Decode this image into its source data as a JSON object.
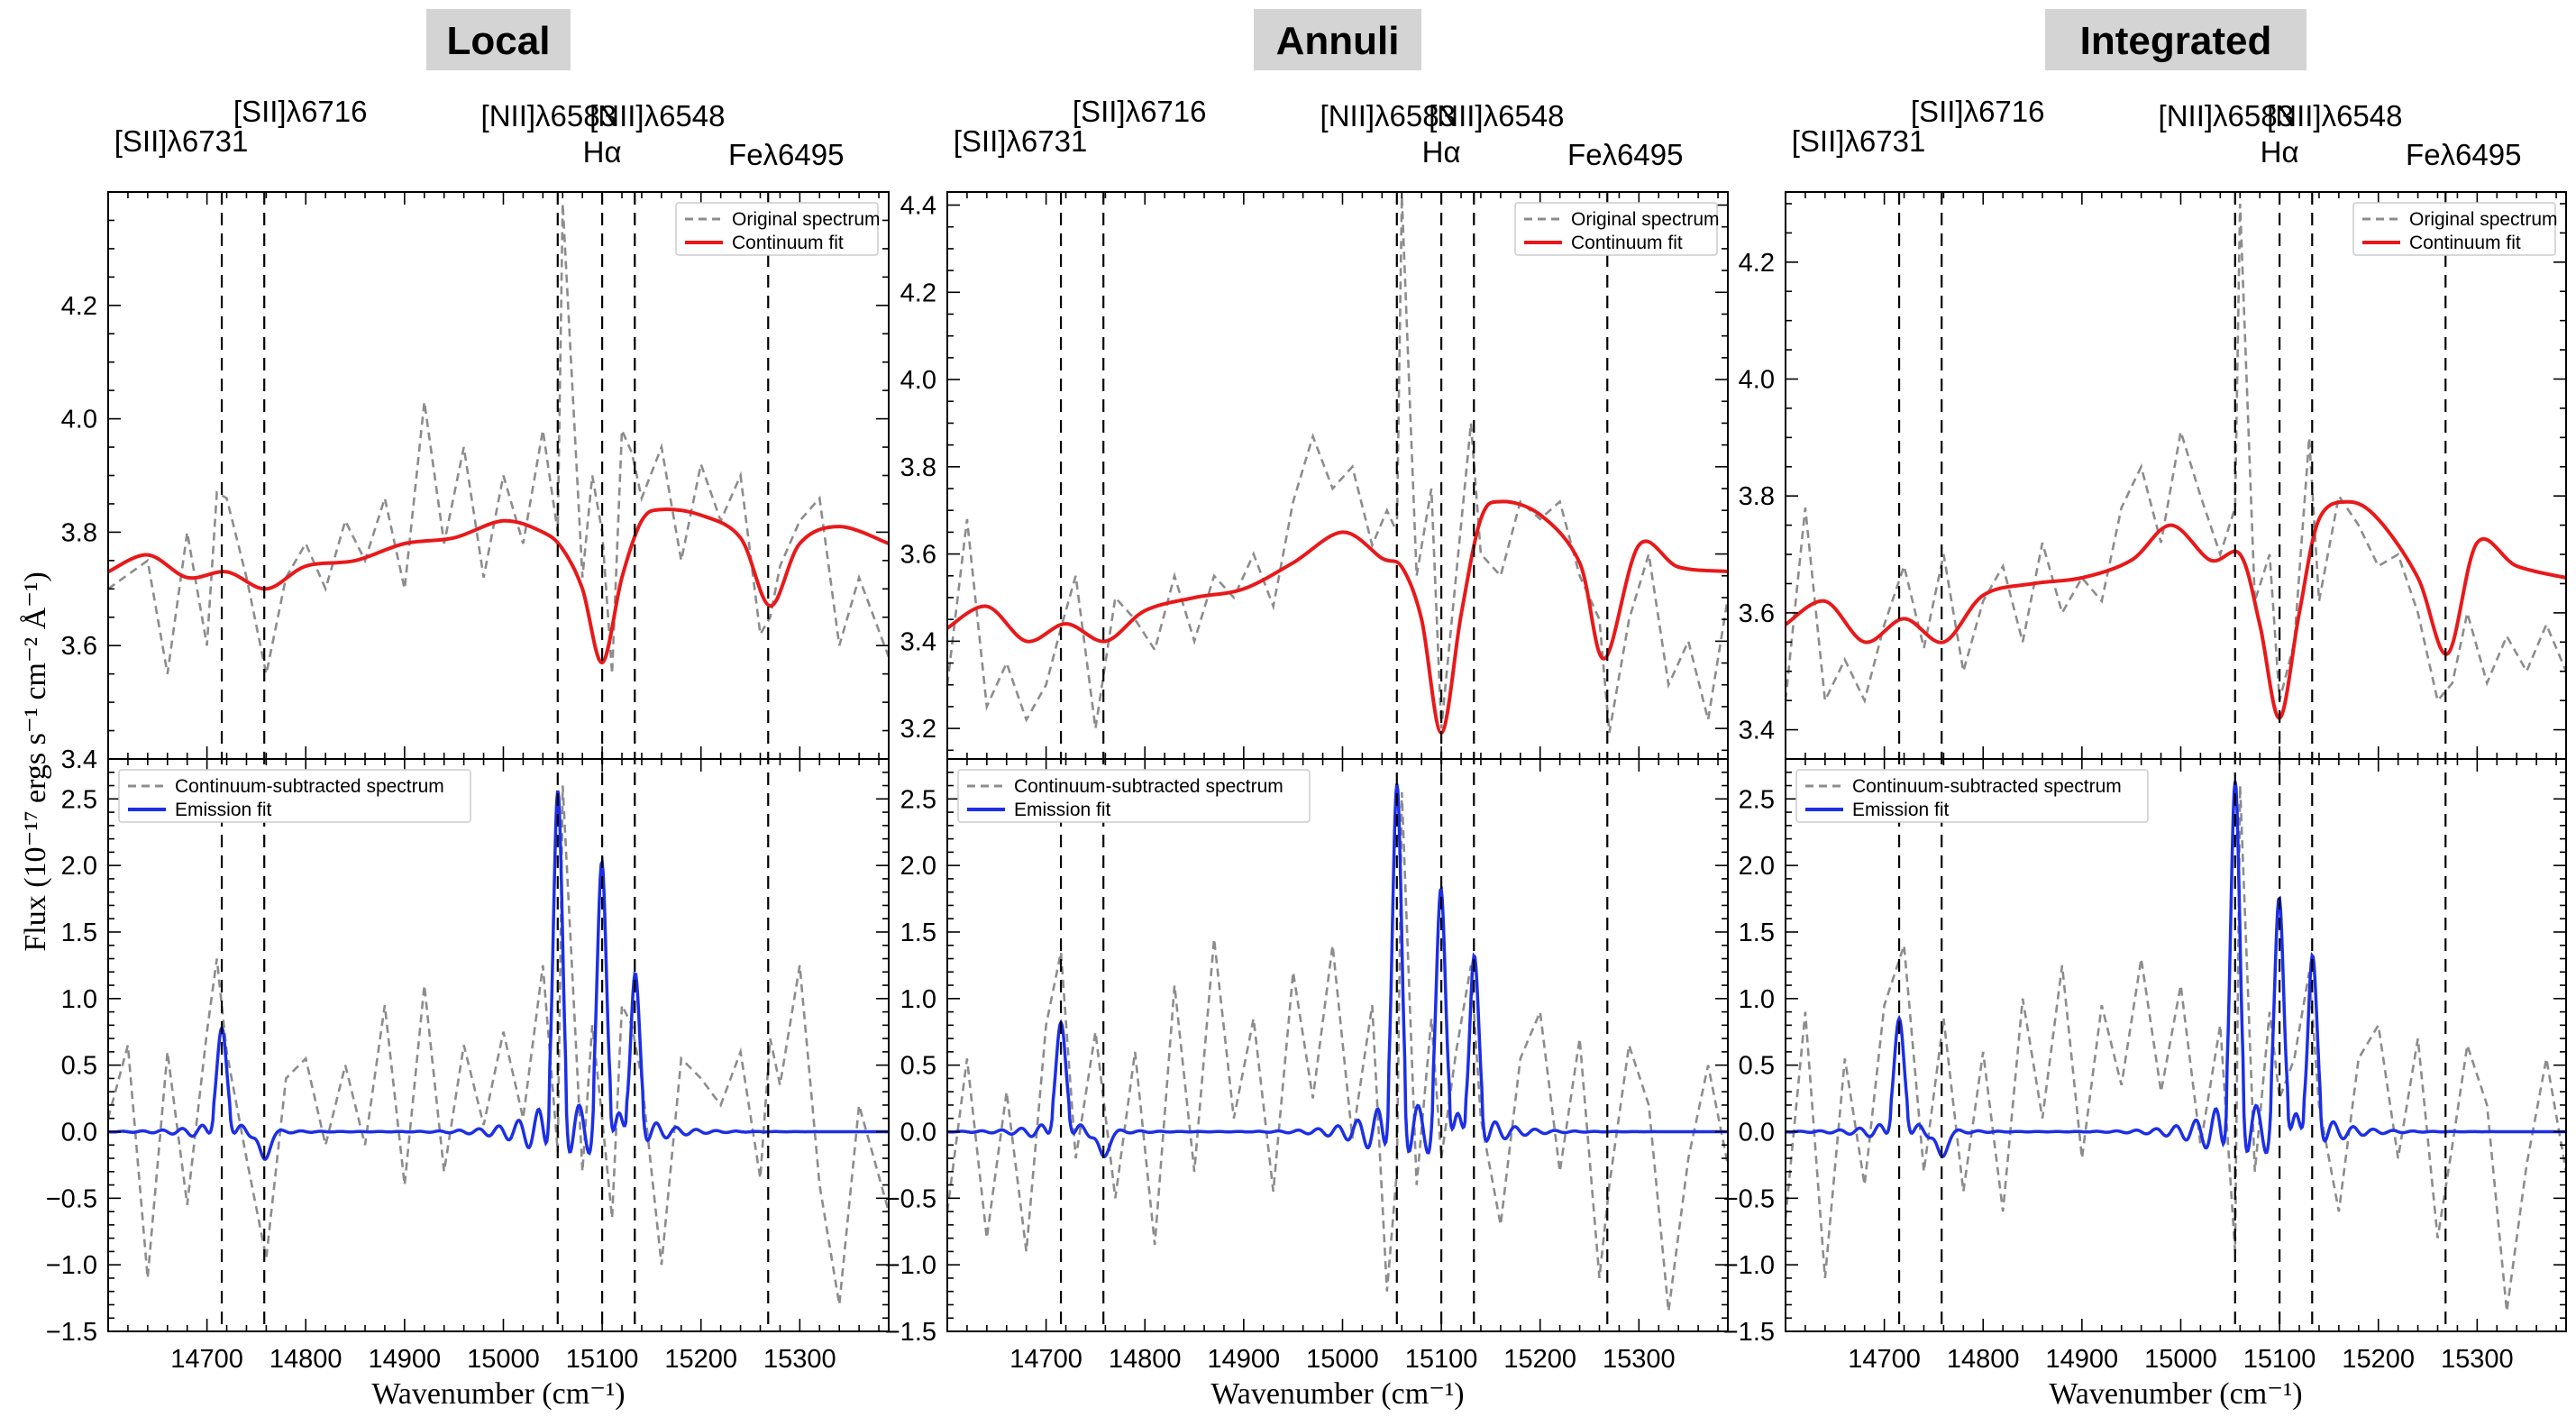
{
  "figure": {
    "ylabel": "Flux (10⁻¹⁷ ergs s⁻¹ cm⁻² Å⁻¹)",
    "xlabel": "Wavenumber (cm⁻¹)",
    "colors": {
      "original": "#8c8c8c",
      "continuum": "#e8191a",
      "residual": "#8c8c8c",
      "emission": "#1c2fe6",
      "title_bg": "#d4d4d4"
    }
  },
  "lines": [
    {
      "label": "[SII]λ6731",
      "nu": 14715
    },
    {
      "label": "[SII]λ6716",
      "nu": 14758
    },
    {
      "label": "[NII]λ6583",
      "nu": 15055
    },
    {
      "label": "Hα",
      "nu": 15100
    },
    {
      "label": "[NII]λ6548",
      "nu": 15133
    },
    {
      "label": "Feλ6495",
      "nu": 15268
    }
  ],
  "chart_data": [
    {
      "type": "line",
      "panel": "Local",
      "title": "Local",
      "xlim": [
        14600,
        15390
      ],
      "xticks": [
        14700,
        14800,
        14900,
        15000,
        15100,
        15200,
        15300
      ],
      "top": {
        "ylim": [
          3.4,
          4.4
        ],
        "yticks": [
          3.4,
          3.6,
          3.8,
          4.0,
          4.2
        ],
        "legend": [
          "Original spectrum",
          "Continuum fit"
        ],
        "continuum": {
          "x": [
            14600,
            14640,
            14680,
            14720,
            14760,
            14800,
            14850,
            14900,
            14950,
            15000,
            15040,
            15060,
            15080,
            15100,
            15120,
            15140,
            15160,
            15200,
            15240,
            15270,
            15300,
            15340,
            15390
          ],
          "y": [
            3.73,
            3.76,
            3.72,
            3.73,
            3.7,
            3.74,
            3.75,
            3.78,
            3.79,
            3.82,
            3.8,
            3.77,
            3.7,
            3.57,
            3.72,
            3.82,
            3.84,
            3.83,
            3.79,
            3.67,
            3.78,
            3.81,
            3.78
          ]
        },
        "original": {
          "x": [
            14600,
            14640,
            14660,
            14680,
            14700,
            14710,
            14720,
            14740,
            14760,
            14780,
            14800,
            14820,
            14840,
            14860,
            14880,
            14900,
            14920,
            14940,
            14960,
            14980,
            15000,
            15020,
            15040,
            15055,
            15060,
            15080,
            15090,
            15100,
            15110,
            15120,
            15130,
            15140,
            15160,
            15180,
            15200,
            15220,
            15240,
            15260,
            15270,
            15280,
            15300,
            15320,
            15340,
            15360,
            15390
          ],
          "y": [
            3.7,
            3.75,
            3.55,
            3.8,
            3.6,
            3.87,
            3.86,
            3.72,
            3.55,
            3.72,
            3.78,
            3.7,
            3.82,
            3.75,
            3.86,
            3.7,
            4.03,
            3.78,
            3.95,
            3.72,
            3.9,
            3.78,
            3.98,
            3.8,
            4.38,
            3.72,
            3.9,
            3.8,
            3.55,
            3.98,
            3.94,
            3.86,
            3.95,
            3.75,
            3.92,
            3.82,
            3.9,
            3.62,
            3.65,
            3.74,
            3.82,
            3.86,
            3.6,
            3.72,
            3.58
          ]
        }
      },
      "bottom": {
        "ylim": [
          -1.5,
          2.8
        ],
        "yticks": [
          -1.5,
          -1.0,
          -0.5,
          0.0,
          0.5,
          1.0,
          1.5,
          2.0,
          2.5
        ],
        "legend": [
          "Continuum-subtracted spectrum",
          "Emission fit"
        ],
        "peaks": [
          0.78,
          -0.22,
          2.55,
          2.05,
          1.22
        ],
        "residual": {
          "x": [
            14600,
            14620,
            14640,
            14660,
            14680,
            14700,
            14710,
            14720,
            14740,
            14760,
            14780,
            14800,
            14820,
            14840,
            14860,
            14880,
            14900,
            14920,
            14940,
            14960,
            14980,
            15000,
            15020,
            15040,
            15055,
            15060,
            15080,
            15090,
            15100,
            15110,
            15120,
            15130,
            15140,
            15160,
            15180,
            15200,
            15220,
            15240,
            15260,
            15270,
            15280,
            15300,
            15320,
            15340,
            15360,
            15390
          ],
          "y": [
            0.1,
            0.65,
            -1.1,
            0.6,
            -0.55,
            0.75,
            1.3,
            0.6,
            -0.2,
            -0.95,
            0.4,
            0.55,
            -0.1,
            0.5,
            -0.1,
            0.95,
            -0.4,
            1.1,
            -0.3,
            0.65,
            0.05,
            0.75,
            0.1,
            1.25,
            -0.15,
            2.6,
            -0.3,
            0.8,
            0.1,
            -0.65,
            0.95,
            0.8,
            0.4,
            -1.0,
            0.55,
            0.4,
            0.2,
            0.6,
            -0.35,
            0.7,
            0.35,
            1.25,
            -0.4,
            -1.3,
            0.2,
            -0.6
          ]
        }
      }
    },
    {
      "type": "line",
      "panel": "Annuli",
      "title": "Annuli",
      "xlim": [
        14600,
        15390
      ],
      "xticks": [
        14700,
        14800,
        14900,
        15000,
        15100,
        15200,
        15300
      ],
      "top": {
        "ylim": [
          3.13,
          4.43
        ],
        "yticks": [
          3.2,
          3.4,
          3.6,
          3.8,
          4.0,
          4.2,
          4.4
        ],
        "legend": [
          "Original spectrum",
          "Continuum fit"
        ],
        "continuum": {
          "x": [
            14600,
            14640,
            14680,
            14720,
            14760,
            14800,
            14850,
            14900,
            14950,
            15000,
            15040,
            15060,
            15080,
            15100,
            15120,
            15140,
            15160,
            15200,
            15240,
            15265,
            15300,
            15340,
            15390
          ],
          "y": [
            3.43,
            3.48,
            3.4,
            3.44,
            3.4,
            3.47,
            3.5,
            3.52,
            3.58,
            3.65,
            3.59,
            3.57,
            3.45,
            3.19,
            3.46,
            3.68,
            3.72,
            3.69,
            3.58,
            3.36,
            3.62,
            3.57,
            3.56
          ]
        },
        "original": {
          "x": [
            14600,
            14620,
            14640,
            14660,
            14680,
            14700,
            14715,
            14730,
            14750,
            14770,
            14790,
            14810,
            14830,
            14850,
            14870,
            14890,
            14910,
            14930,
            14950,
            14970,
            14990,
            15010,
            15030,
            15045,
            15055,
            15060,
            15075,
            15090,
            15100,
            15115,
            15130,
            15140,
            15160,
            15180,
            15200,
            15220,
            15240,
            15260,
            15270,
            15290,
            15310,
            15330,
            15350,
            15370,
            15390
          ],
          "y": [
            3.3,
            3.68,
            3.25,
            3.35,
            3.22,
            3.3,
            3.43,
            3.55,
            3.2,
            3.5,
            3.45,
            3.38,
            3.55,
            3.4,
            3.55,
            3.5,
            3.6,
            3.48,
            3.72,
            3.87,
            3.75,
            3.8,
            3.62,
            3.7,
            3.65,
            4.42,
            3.55,
            3.75,
            3.2,
            3.55,
            3.9,
            3.6,
            3.55,
            3.72,
            3.68,
            3.72,
            3.55,
            3.45,
            3.19,
            3.45,
            3.6,
            3.3,
            3.4,
            3.22,
            3.5
          ]
        }
      },
      "bottom": {
        "ylim": [
          -1.5,
          2.8
        ],
        "yticks": [
          -1.5,
          -1.0,
          -0.5,
          0.0,
          0.5,
          1.0,
          1.5,
          2.0,
          2.5
        ],
        "legend": [
          "Continuum-subtracted spectrum",
          "Emission fit"
        ],
        "peaks": [
          0.82,
          -0.2,
          2.6,
          1.85,
          1.35
        ],
        "residual": {
          "x": [
            14600,
            14620,
            14640,
            14660,
            14680,
            14700,
            14715,
            14730,
            14750,
            14770,
            14790,
            14810,
            14830,
            14850,
            14870,
            14890,
            14910,
            14930,
            14950,
            14970,
            14990,
            15010,
            15030,
            15045,
            15055,
            15060,
            15075,
            15090,
            15100,
            15115,
            15130,
            15140,
            15160,
            15180,
            15200,
            15220,
            15240,
            15260,
            15270,
            15290,
            15310,
            15330,
            15350,
            15370,
            15390
          ],
          "y": [
            -0.6,
            0.55,
            -0.8,
            0.3,
            -0.9,
            0.8,
            1.35,
            -0.2,
            0.75,
            -0.5,
            0.6,
            -0.85,
            1.1,
            -0.3,
            1.45,
            0.1,
            0.85,
            -0.45,
            1.2,
            0.25,
            1.4,
            -0.05,
            0.95,
            -1.2,
            -0.3,
            2.55,
            -0.4,
            0.85,
            -0.2,
            0.6,
            1.25,
            0.1,
            -0.7,
            0.55,
            0.9,
            -0.3,
            0.7,
            -1.1,
            -0.4,
            0.65,
            0.2,
            -1.35,
            -0.2,
            0.5,
            -0.25
          ]
        }
      }
    },
    {
      "type": "line",
      "panel": "Integrated",
      "title": "Integrated",
      "xlim": [
        14600,
        15390
      ],
      "xticks": [
        14700,
        14800,
        14900,
        15000,
        15100,
        15200,
        15300
      ],
      "top": {
        "ylim": [
          3.35,
          4.32
        ],
        "yticks": [
          3.4,
          3.6,
          3.8,
          4.0,
          4.2
        ],
        "legend": [
          "Original spectrum",
          "Continuum fit"
        ],
        "continuum": {
          "x": [
            14600,
            14640,
            14680,
            14720,
            14760,
            14800,
            14850,
            14900,
            14950,
            14990,
            15030,
            15060,
            15080,
            15100,
            15120,
            15140,
            15170,
            15200,
            15240,
            15270,
            15300,
            15340,
            15390
          ],
          "y": [
            3.58,
            3.62,
            3.55,
            3.59,
            3.55,
            3.63,
            3.65,
            3.66,
            3.69,
            3.75,
            3.69,
            3.7,
            3.58,
            3.42,
            3.6,
            3.76,
            3.79,
            3.76,
            3.66,
            3.53,
            3.72,
            3.68,
            3.66
          ]
        },
        "original": {
          "x": [
            14600,
            14620,
            14640,
            14660,
            14680,
            14700,
            14720,
            14740,
            14760,
            14780,
            14800,
            14820,
            14840,
            14860,
            14880,
            14900,
            14920,
            14940,
            14960,
            14980,
            15000,
            15020,
            15040,
            15055,
            15060,
            15075,
            15090,
            15100,
            15115,
            15130,
            15140,
            15160,
            15180,
            15200,
            15220,
            15240,
            15260,
            15275,
            15290,
            15310,
            15330,
            15350,
            15370,
            15390
          ],
          "y": [
            3.45,
            3.78,
            3.45,
            3.52,
            3.45,
            3.58,
            3.68,
            3.54,
            3.7,
            3.5,
            3.62,
            3.68,
            3.55,
            3.72,
            3.6,
            3.66,
            3.62,
            3.78,
            3.85,
            3.72,
            3.91,
            3.8,
            3.7,
            3.78,
            4.3,
            3.62,
            3.7,
            3.45,
            3.55,
            3.9,
            3.62,
            3.8,
            3.75,
            3.68,
            3.7,
            3.6,
            3.45,
            3.48,
            3.6,
            3.48,
            3.56,
            3.5,
            3.58,
            3.5
          ]
        }
      },
      "bottom": {
        "ylim": [
          -1.5,
          2.8
        ],
        "yticks": [
          -1.5,
          -1.0,
          -0.5,
          0.0,
          0.5,
          1.0,
          1.5,
          2.0,
          2.5
        ],
        "legend": [
          "Continuum-subtracted spectrum",
          "Emission fit"
        ],
        "peaks": [
          0.85,
          -0.2,
          2.62,
          1.78,
          1.35
        ],
        "residual": {
          "x": [
            14600,
            14620,
            14640,
            14660,
            14680,
            14700,
            14720,
            14740,
            14760,
            14780,
            14800,
            14820,
            14840,
            14860,
            14880,
            14900,
            14920,
            14940,
            14960,
            14980,
            15000,
            15020,
            15040,
            15055,
            15060,
            15075,
            15090,
            15100,
            15115,
            15130,
            15140,
            15160,
            15180,
            15200,
            15220,
            15240,
            15260,
            15275,
            15290,
            15310,
            15330,
            15350,
            15370,
            15390
          ],
          "y": [
            -0.65,
            0.9,
            -1.1,
            0.55,
            -0.4,
            0.95,
            1.4,
            -0.3,
            0.85,
            -0.45,
            0.6,
            -0.6,
            1.0,
            0.1,
            1.25,
            -0.2,
            0.95,
            0.35,
            1.3,
            0.3,
            1.1,
            -0.1,
            0.8,
            -0.9,
            2.6,
            -0.3,
            0.9,
            0.25,
            0.55,
            1.2,
            0.2,
            -0.6,
            0.55,
            0.8,
            -0.2,
            0.7,
            -0.8,
            -0.1,
            0.65,
            0.2,
            -1.35,
            -0.25,
            0.55,
            -0.3
          ]
        }
      }
    }
  ]
}
